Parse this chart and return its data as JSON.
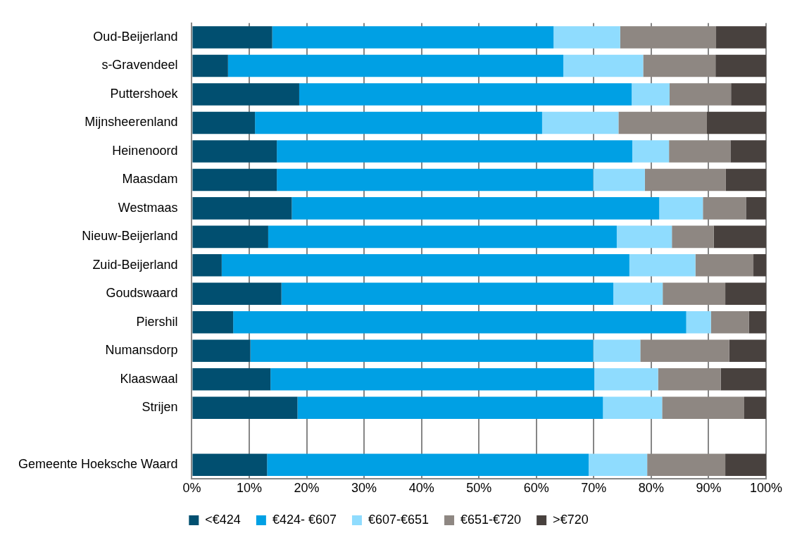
{
  "chart_data": {
    "type": "bar",
    "orientation": "horizontal",
    "stacked": true,
    "categories": [
      "Oud-Beijerland",
      "s-Gravendeel",
      "Puttershoek",
      "Mijnsheerenland",
      "Heinenoord",
      "Maasdam",
      "Westmaas",
      "Nieuw-Beijerland",
      "Zuid-Beijerland",
      "Goudswaard",
      "Piershil",
      "Numansdorp",
      "Klaaswaal",
      "Strijen",
      null,
      "Gemeente Hoeksche Waard"
    ],
    "series": [
      {
        "name": "<€424",
        "color": "#014f70",
        "values": [
          14.0,
          6.3,
          18.7,
          11.0,
          14.8,
          14.8,
          17.4,
          13.3,
          5.2,
          15.6,
          7.2,
          10.2,
          13.7,
          18.4,
          null,
          13.1
        ]
      },
      {
        "name": "€424- €607",
        "color": "#00a0e4",
        "values": [
          49.0,
          58.4,
          57.9,
          50.0,
          61.9,
          55.1,
          64.0,
          60.7,
          71.0,
          57.8,
          78.9,
          59.7,
          56.4,
          53.2,
          null,
          56.0
        ]
      },
      {
        "name": "€607-€651",
        "color": "#8fdcfe",
        "values": [
          11.6,
          13.9,
          6.6,
          13.3,
          6.4,
          9.0,
          7.6,
          9.6,
          11.5,
          8.6,
          4.3,
          8.2,
          11.1,
          10.3,
          null,
          10.2
        ]
      },
      {
        "name": "€651-€720",
        "color": "#8e8782",
        "values": [
          16.7,
          12.6,
          10.7,
          15.4,
          10.7,
          14.1,
          7.5,
          7.3,
          10.1,
          10.9,
          6.6,
          15.5,
          10.9,
          14.3,
          null,
          13.6
        ]
      },
      {
        "name": ">€720",
        "color": "#48413e",
        "values": [
          8.7,
          8.8,
          6.1,
          10.3,
          6.2,
          7.0,
          3.5,
          9.1,
          2.2,
          7.1,
          3.0,
          6.4,
          7.9,
          3.8,
          null,
          7.1
        ]
      }
    ],
    "xlim": [
      0,
      100
    ],
    "xticks": [
      {
        "value": 0,
        "label": "0%"
      },
      {
        "value": 10,
        "label": "10%"
      },
      {
        "value": 20,
        "label": "20%"
      },
      {
        "value": 30,
        "label": "30%"
      },
      {
        "value": 40,
        "label": "40%"
      },
      {
        "value": 50,
        "label": "50%"
      },
      {
        "value": 60,
        "label": "60%"
      },
      {
        "value": 70,
        "label": "70%"
      },
      {
        "value": 80,
        "label": "80%"
      },
      {
        "value": 90,
        "label": "90%"
      },
      {
        "value": 100,
        "label": "100%"
      }
    ],
    "grid": "x",
    "legend": "bottom"
  }
}
